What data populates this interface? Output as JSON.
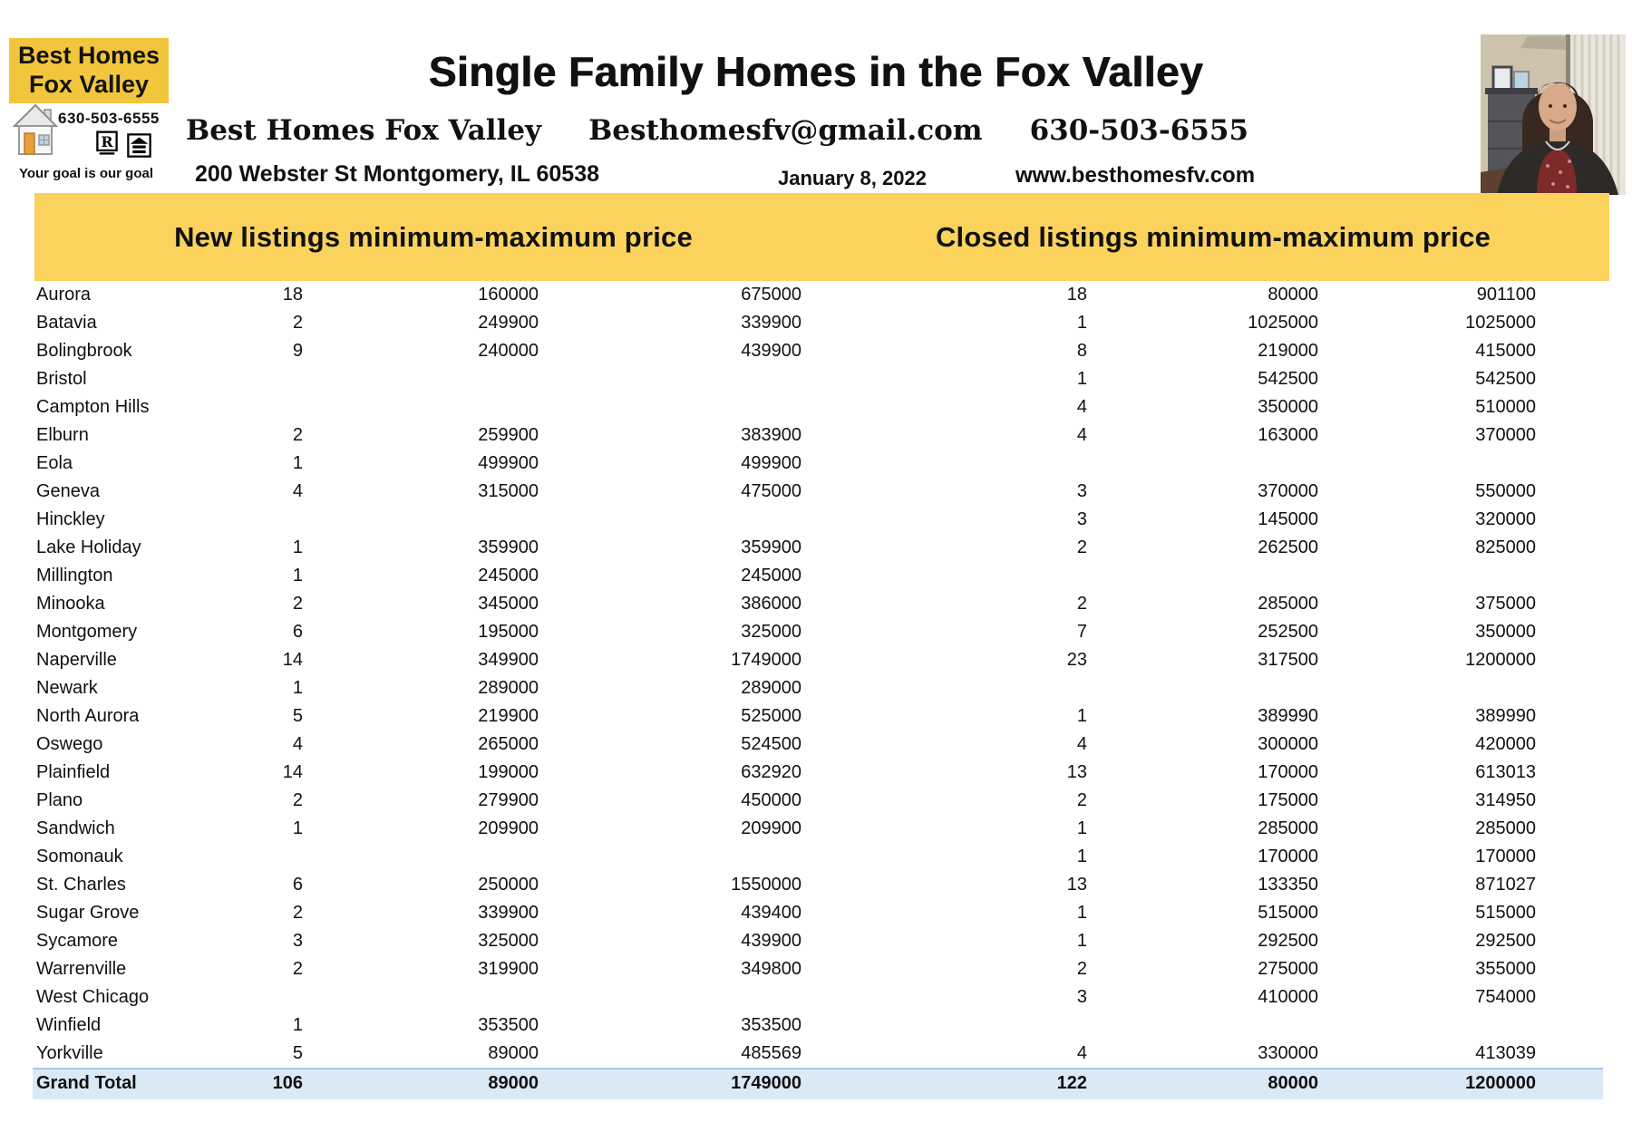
{
  "header": {
    "logo": {
      "line1": "Best Homes",
      "line2": "Fox Valley",
      "phone": "630-503-6555",
      "tagline": "Your goal is our goal"
    },
    "title": "Single Family Homes in the Fox Valley",
    "company_line": {
      "name": "Best Homes Fox Valley",
      "email": "Besthomesfv@gmail.com",
      "phone": "630-503-6555"
    },
    "address": "200 Webster St Montgomery, IL 60538",
    "date": "January 8, 2022",
    "website": "www.besthomesfv.com"
  },
  "banner": {
    "left": "New listings minimum-maximum price",
    "right": "Closed listings minimum-maximum price"
  },
  "colors": {
    "logo_yellow": "#f2c63c",
    "banner_yellow": "#fbd35c",
    "total_row_bg": "#dbe9f6",
    "total_row_border": "#a9c7e7",
    "text": "#111111"
  },
  "table": {
    "rows": [
      {
        "city": "Aurora",
        "new_count": "18",
        "new_min": "160000",
        "new_max": "675000",
        "closed_count": "18",
        "closed_min": "80000",
        "closed_max": "901100"
      },
      {
        "city": "Batavia",
        "new_count": "2",
        "new_min": "249900",
        "new_max": "339900",
        "closed_count": "1",
        "closed_min": "1025000",
        "closed_max": "1025000"
      },
      {
        "city": "Bolingbrook",
        "new_count": "9",
        "new_min": "240000",
        "new_max": "439900",
        "closed_count": "8",
        "closed_min": "219000",
        "closed_max": "415000"
      },
      {
        "city": "Bristol",
        "new_count": "",
        "new_min": "",
        "new_max": "",
        "closed_count": "1",
        "closed_min": "542500",
        "closed_max": "542500"
      },
      {
        "city": "Campton Hills",
        "new_count": "",
        "new_min": "",
        "new_max": "",
        "closed_count": "4",
        "closed_min": "350000",
        "closed_max": "510000"
      },
      {
        "city": "Elburn",
        "new_count": "2",
        "new_min": "259900",
        "new_max": "383900",
        "closed_count": "4",
        "closed_min": "163000",
        "closed_max": "370000"
      },
      {
        "city": "Eola",
        "new_count": "1",
        "new_min": "499900",
        "new_max": "499900",
        "closed_count": "",
        "closed_min": "",
        "closed_max": ""
      },
      {
        "city": "Geneva",
        "new_count": "4",
        "new_min": "315000",
        "new_max": "475000",
        "closed_count": "3",
        "closed_min": "370000",
        "closed_max": "550000"
      },
      {
        "city": "Hinckley",
        "new_count": "",
        "new_min": "",
        "new_max": "",
        "closed_count": "3",
        "closed_min": "145000",
        "closed_max": "320000"
      },
      {
        "city": "Lake Holiday",
        "new_count": "1",
        "new_min": "359900",
        "new_max": "359900",
        "closed_count": "2",
        "closed_min": "262500",
        "closed_max": "825000"
      },
      {
        "city": "Millington",
        "new_count": "1",
        "new_min": "245000",
        "new_max": "245000",
        "closed_count": "",
        "closed_min": "",
        "closed_max": ""
      },
      {
        "city": "Minooka",
        "new_count": "2",
        "new_min": "345000",
        "new_max": "386000",
        "closed_count": "2",
        "closed_min": "285000",
        "closed_max": "375000"
      },
      {
        "city": "Montgomery",
        "new_count": "6",
        "new_min": "195000",
        "new_max": "325000",
        "closed_count": "7",
        "closed_min": "252500",
        "closed_max": "350000"
      },
      {
        "city": "Naperville",
        "new_count": "14",
        "new_min": "349900",
        "new_max": "1749000",
        "closed_count": "23",
        "closed_min": "317500",
        "closed_max": "1200000"
      },
      {
        "city": "Newark",
        "new_count": "1",
        "new_min": "289000",
        "new_max": "289000",
        "closed_count": "",
        "closed_min": "",
        "closed_max": ""
      },
      {
        "city": "North Aurora",
        "new_count": "5",
        "new_min": "219900",
        "new_max": "525000",
        "closed_count": "1",
        "closed_min": "389990",
        "closed_max": "389990"
      },
      {
        "city": "Oswego",
        "new_count": "4",
        "new_min": "265000",
        "new_max": "524500",
        "closed_count": "4",
        "closed_min": "300000",
        "closed_max": "420000"
      },
      {
        "city": "Plainfield",
        "new_count": "14",
        "new_min": "199000",
        "new_max": "632920",
        "closed_count": "13",
        "closed_min": "170000",
        "closed_max": "613013"
      },
      {
        "city": "Plano",
        "new_count": "2",
        "new_min": "279900",
        "new_max": "450000",
        "closed_count": "2",
        "closed_min": "175000",
        "closed_max": "314950"
      },
      {
        "city": "Sandwich",
        "new_count": "1",
        "new_min": "209900",
        "new_max": "209900",
        "closed_count": "1",
        "closed_min": "285000",
        "closed_max": "285000"
      },
      {
        "city": "Somonauk",
        "new_count": "",
        "new_min": "",
        "new_max": "",
        "closed_count": "1",
        "closed_min": "170000",
        "closed_max": "170000"
      },
      {
        "city": "St. Charles",
        "new_count": "6",
        "new_min": "250000",
        "new_max": "1550000",
        "closed_count": "13",
        "closed_min": "133350",
        "closed_max": "871027"
      },
      {
        "city": "Sugar Grove",
        "new_count": "2",
        "new_min": "339900",
        "new_max": "439400",
        "closed_count": "1",
        "closed_min": "515000",
        "closed_max": "515000"
      },
      {
        "city": "Sycamore",
        "new_count": "3",
        "new_min": "325000",
        "new_max": "439900",
        "closed_count": "1",
        "closed_min": "292500",
        "closed_max": "292500"
      },
      {
        "city": "Warrenville",
        "new_count": "2",
        "new_min": "319900",
        "new_max": "349800",
        "closed_count": "2",
        "closed_min": "275000",
        "closed_max": "355000"
      },
      {
        "city": "West Chicago",
        "new_count": "",
        "new_min": "",
        "new_max": "",
        "closed_count": "3",
        "closed_min": "410000",
        "closed_max": "754000"
      },
      {
        "city": "Winfield",
        "new_count": "1",
        "new_min": "353500",
        "new_max": "353500",
        "closed_count": "",
        "closed_min": "",
        "closed_max": ""
      },
      {
        "city": "Yorkville",
        "new_count": "5",
        "new_min": "89000",
        "new_max": "485569",
        "closed_count": "4",
        "closed_min": "330000",
        "closed_max": "413039"
      },
      {
        "city": "Grand Total",
        "new_count": "106",
        "new_min": "89000",
        "new_max": "1749000",
        "closed_count": "122",
        "closed_min": "80000",
        "closed_max": "1200000",
        "total": true
      }
    ]
  }
}
